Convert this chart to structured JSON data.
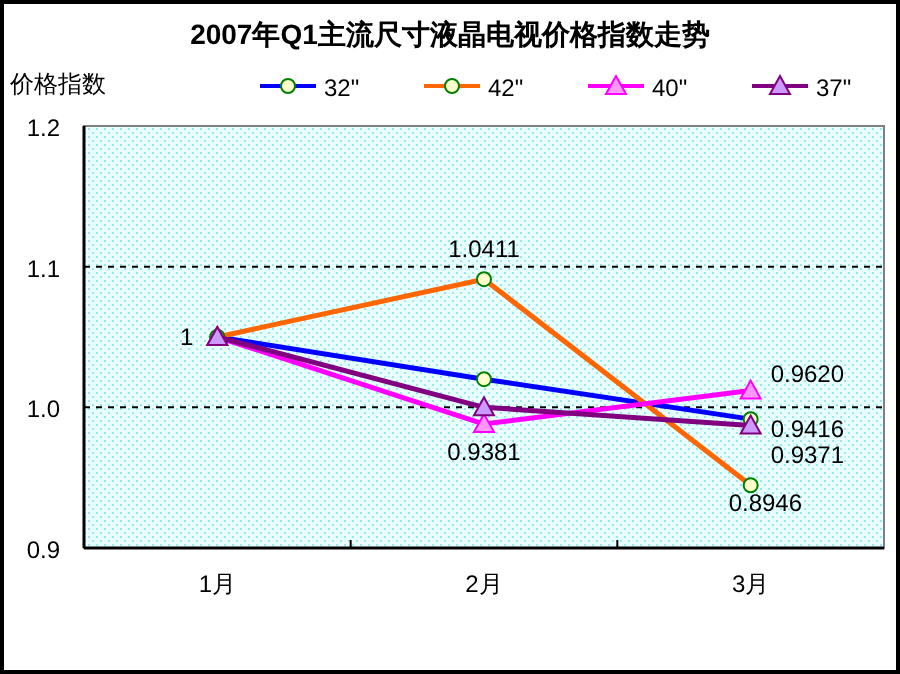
{
  "chart_data": {
    "type": "line",
    "title": "2007年Q1主流尺寸液晶电视价格指数走势",
    "ylabel": "价格指数",
    "categories": [
      "1月",
      "2月",
      "3月"
    ],
    "ylim": [
      0.85,
      1.15
    ],
    "yticks": [
      {
        "value": 0.85,
        "label": "0.9"
      },
      {
        "value": 0.95,
        "label": "1.0"
      },
      {
        "value": 1.05,
        "label": "1.1"
      },
      {
        "value": 1.15,
        "label": "1.2"
      }
    ],
    "grid": "y",
    "legend": "top",
    "line_style": "solid",
    "series": [
      {
        "name": "32\"",
        "color": "#0000ff",
        "marker": "circle",
        "values": [
          1,
          0.97,
          0.9416
        ],
        "value_labels": [
          "1",
          null,
          "0.9416"
        ]
      },
      {
        "name": "42\"",
        "color": "#ff6600",
        "marker": "circle",
        "values": [
          1,
          1.0411,
          0.8946
        ],
        "value_labels": [
          null,
          "1.0411",
          "0.8946"
        ]
      },
      {
        "name": "40\"",
        "color": "#ff00ff",
        "marker": "triangle",
        "values": [
          1,
          0.9381,
          0.962
        ],
        "value_labels": [
          null,
          "0.9381",
          "0.9620"
        ]
      },
      {
        "name": "37\"",
        "color": "#800080",
        "marker": "triangle",
        "values": [
          1,
          0.95,
          0.9371
        ],
        "value_labels": [
          null,
          null,
          "0.9371"
        ]
      }
    ]
  }
}
